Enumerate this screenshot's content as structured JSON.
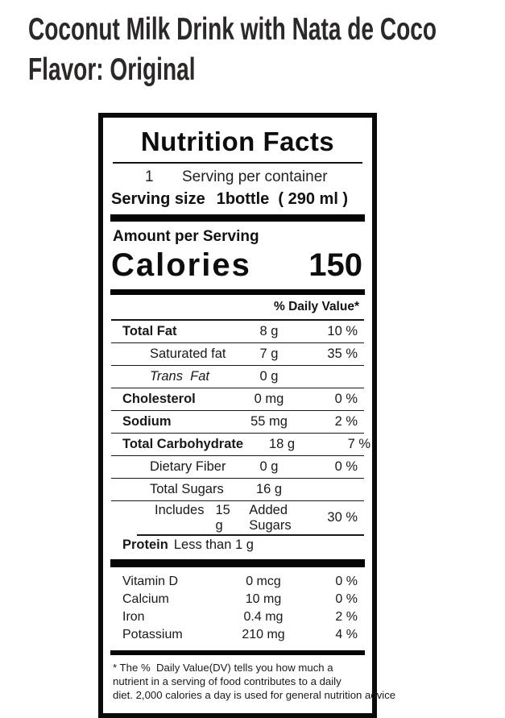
{
  "title": {
    "line1": "Coconut Milk Drink with Nata de Coco",
    "line2": "Flavor: Original"
  },
  "label": {
    "heading": "Nutrition Facts",
    "servings": {
      "count": "1",
      "text": "Serving per container"
    },
    "serving_size": {
      "label": "Serving size",
      "value": "1bottle  ( 290 ml )"
    },
    "amount_per_serving": "Amount per Serving",
    "calories_label": "Calories",
    "calories_value": "150",
    "daily_value_header": "% Daily Value*",
    "nutrients": [
      {
        "name": "Total Fat",
        "amount": "8 g",
        "dv": "10 %"
      },
      {
        "name": "Saturated fat",
        "amount": "7 g",
        "dv": "35 %"
      },
      {
        "name": "Trans  Fat",
        "amount": "0 g",
        "dv": ""
      },
      {
        "name": "Cholesterol",
        "amount": "0 mg",
        "dv": "0 %"
      },
      {
        "name": "Sodium",
        "amount": "55 mg",
        "dv": "2 %"
      },
      {
        "name": "Total Carbohydrate",
        "amount": "18 g",
        "dv": "7 %"
      },
      {
        "name": "Dietary Fiber",
        "amount": "0 g",
        "dv": "0 %"
      },
      {
        "name": "Total Sugars",
        "amount": "16 g",
        "dv": ""
      }
    ],
    "added_sugars": {
      "prefix": "Includes",
      "amount": "15 g",
      "suffix": "Added Sugars",
      "dv": "30 %"
    },
    "protein": {
      "label": "Protein",
      "value": "Less than 1 g"
    },
    "vitamins": [
      {
        "name": "Vitamin D",
        "amount": "0 mcg",
        "dv": "0 %"
      },
      {
        "name": "Calcium",
        "amount": "10 mg",
        "dv": "0 %"
      },
      {
        "name": "Iron",
        "amount": "0.4 mg",
        "dv": "2 %"
      },
      {
        "name": "Potassium",
        "amount": "210 mg",
        "dv": "4 %"
      }
    ],
    "footnote": {
      "line1": "* The %  Daily Value(DV) tells you how much a",
      "line2": "nutrient in a serving of food contributes to a daily",
      "line3": "diet. 2,000 calories a day is used for general nutrition advice"
    }
  },
  "colors": {
    "text": "#161412",
    "rule": "#151515",
    "background": "#ffffff"
  }
}
